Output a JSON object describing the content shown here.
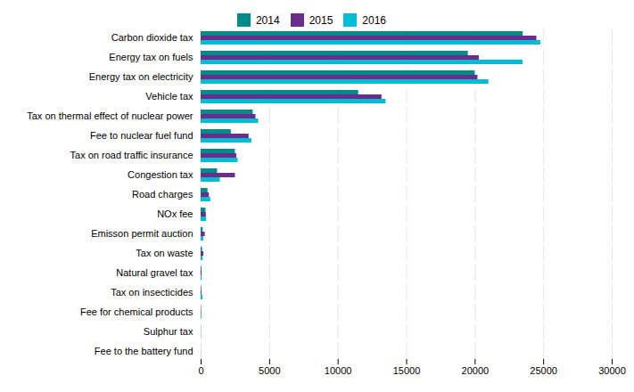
{
  "chart_data": {
    "type": "bar",
    "orientation": "horizontal",
    "categories": [
      "Carbon dioxide tax",
      "Energy tax on fuels",
      "Energy tax on electricity",
      "Vehicle tax",
      "Tax on thermal effect of nuclear power",
      "Fee to nuclear fuel fund",
      "Tax on road traffic insurance",
      "Congestion tax",
      "Road charges",
      "NOx fee",
      "Emisson permit auction",
      "Tax on waste",
      "Natural gravel tax",
      "Tax on insecticides",
      "Fee for chemical products",
      "Sulphur tax",
      "Fee to the battery fund"
    ],
    "series": [
      {
        "name": "2014",
        "color": "#008B8B",
        "values": [
          23500,
          19500,
          20000,
          11500,
          3800,
          2200,
          2500,
          1200,
          500,
          350,
          150,
          100,
          60,
          50,
          30,
          10,
          5
        ]
      },
      {
        "name": "2015",
        "color": "#6B2D8B",
        "values": [
          24500,
          20300,
          20200,
          13200,
          4000,
          3500,
          2600,
          2500,
          600,
          380,
          300,
          200,
          70,
          60,
          40,
          10,
          5
        ]
      },
      {
        "name": "2016",
        "color": "#00BCD4",
        "values": [
          24800,
          23500,
          21000,
          13500,
          4200,
          3700,
          2700,
          1400,
          700,
          400,
          200,
          150,
          80,
          130,
          50,
          15,
          5
        ]
      }
    ],
    "xlim": [
      0,
      30000
    ],
    "xticks": [
      0,
      5000,
      10000,
      15000,
      20000,
      25000,
      30000
    ],
    "grid": true,
    "legend": "center"
  }
}
